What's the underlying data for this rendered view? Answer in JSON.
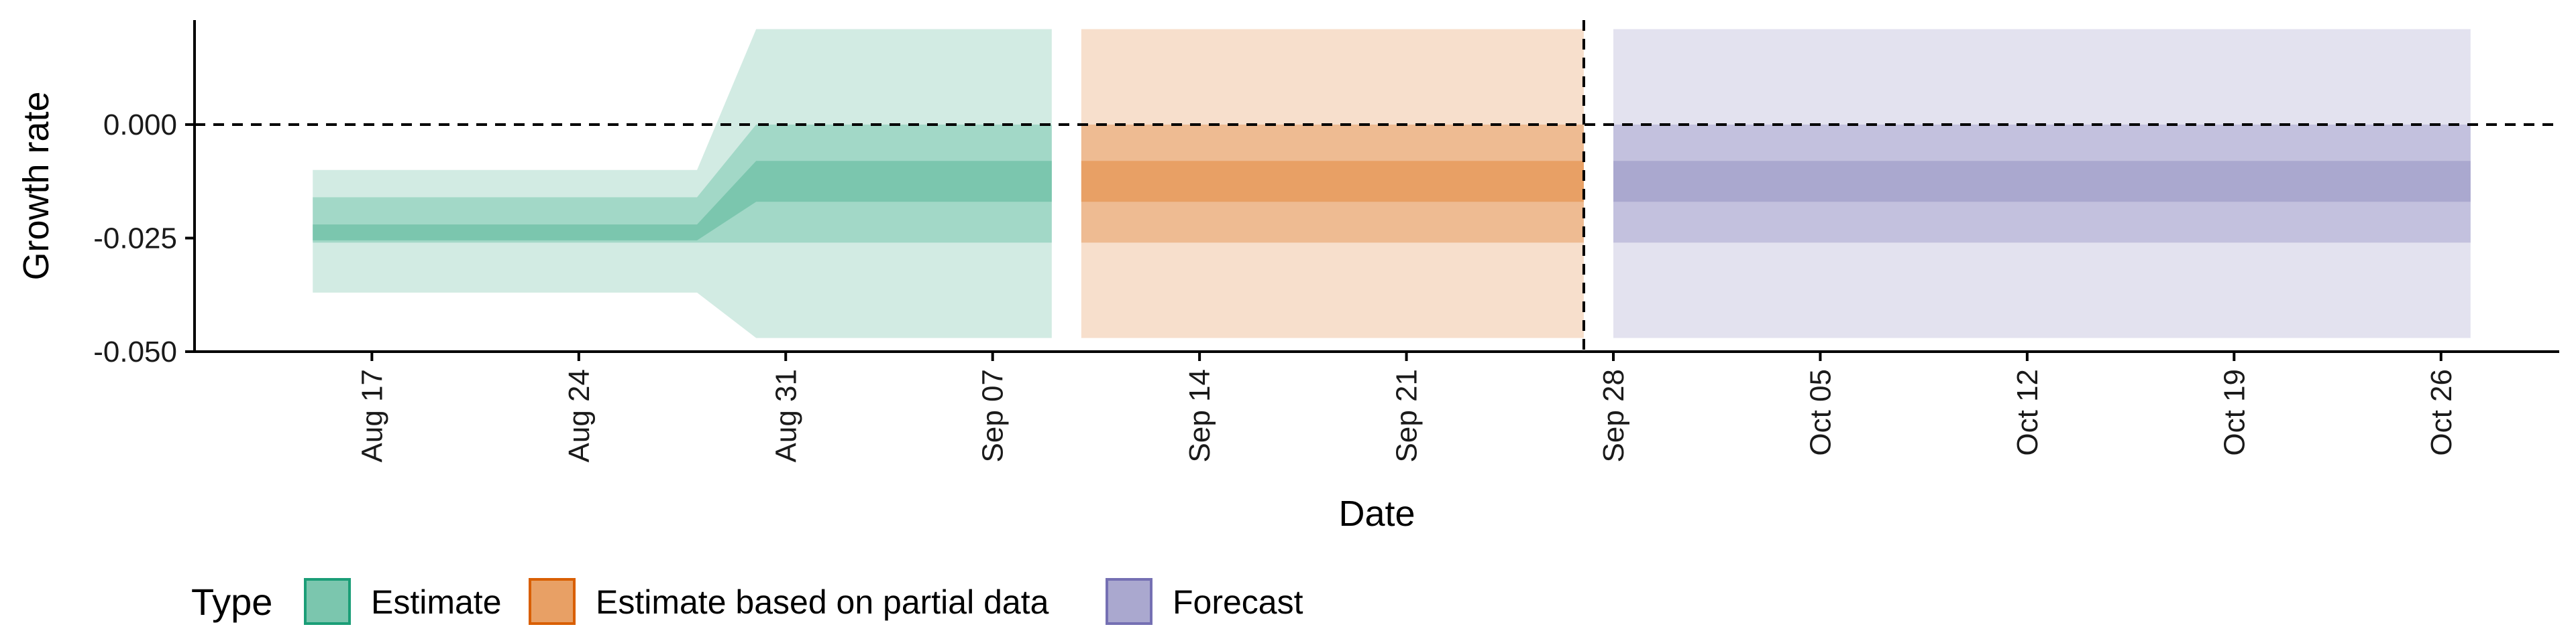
{
  "chart_data": {
    "type": "area",
    "xlabel": "Date",
    "ylabel": "Growth rate",
    "ylim": [
      -0.05,
      0.023
    ],
    "xlim": [
      "2020-08-11",
      "2020-10-30"
    ],
    "yticks": [
      {
        "value": 0.0,
        "label": "0.000"
      },
      {
        "value": -0.025,
        "label": "-0.025"
      },
      {
        "value": -0.05,
        "label": "-0.050"
      }
    ],
    "xticks": [
      {
        "date": "2020-08-17",
        "label": "Aug 17"
      },
      {
        "date": "2020-08-24",
        "label": "Aug 24"
      },
      {
        "date": "2020-08-31",
        "label": "Aug 31"
      },
      {
        "date": "2020-09-07",
        "label": "Sep 07"
      },
      {
        "date": "2020-09-14",
        "label": "Sep 14"
      },
      {
        "date": "2020-09-21",
        "label": "Sep 21"
      },
      {
        "date": "2020-09-28",
        "label": "Sep 28"
      },
      {
        "date": "2020-10-05",
        "label": "Oct 05"
      },
      {
        "date": "2020-10-12",
        "label": "Oct 12"
      },
      {
        "date": "2020-10-19",
        "label": "Oct 19"
      },
      {
        "date": "2020-10-26",
        "label": "Oct 26"
      }
    ],
    "reference_lines": {
      "horizontal_y": 0.0,
      "vertical_date": "2020-09-27"
    },
    "legend": {
      "title": "Type",
      "position": "bottom-left",
      "items": [
        {
          "label": "Estimate",
          "fill": "#7bc6ae",
          "border": "#1b9e77"
        },
        {
          "label": "Estimate based on partial data",
          "fill": "#e8a065",
          "border": "#d95f02"
        },
        {
          "label": "Forecast",
          "fill": "#aaa8cf",
          "border": "#7570b3"
        }
      ]
    },
    "series": [
      {
        "name": "Estimate",
        "colors": {
          "outer": "#d2ebe3",
          "mid": "#a2d8c7",
          "inner": "#7bc6ae"
        },
        "points": [
          {
            "date": "2020-08-15",
            "ci90": [
              -0.037,
              -0.01
            ],
            "ci50": [
              -0.026,
              -0.016
            ],
            "ci20": [
              -0.0255,
              -0.022
            ]
          },
          {
            "date": "2020-08-28",
            "ci90": [
              -0.037,
              -0.01
            ],
            "ci50": [
              -0.026,
              -0.016
            ],
            "ci20": [
              -0.0255,
              -0.022
            ]
          },
          {
            "date": "2020-08-30",
            "ci90": [
              -0.047,
              0.021
            ],
            "ci50": [
              -0.026,
              0.0
            ],
            "ci20": [
              -0.017,
              -0.008
            ]
          },
          {
            "date": "2020-09-09",
            "ci90": [
              -0.047,
              0.021
            ],
            "ci50": [
              -0.026,
              0.0
            ],
            "ci20": [
              -0.017,
              -0.008
            ]
          }
        ]
      },
      {
        "name": "Estimate based on partial data",
        "colors": {
          "outer": "#f7dfcc",
          "mid": "#eebb92",
          "inner": "#e8a065"
        },
        "points": [
          {
            "date": "2020-09-10",
            "ci90": [
              -0.047,
              0.021
            ],
            "ci50": [
              -0.026,
              0.0
            ],
            "ci20": [
              -0.017,
              -0.008
            ]
          },
          {
            "date": "2020-09-27",
            "ci90": [
              -0.047,
              0.021
            ],
            "ci50": [
              -0.026,
              0.0
            ],
            "ci20": [
              -0.017,
              -0.008
            ]
          }
        ]
      },
      {
        "name": "Forecast",
        "colors": {
          "outer": "#e3e2ef",
          "mid": "#c3c1de",
          "inner": "#aaa8cf"
        },
        "points": [
          {
            "date": "2020-09-28",
            "ci90": [
              -0.047,
              0.021
            ],
            "ci50": [
              -0.026,
              0.0
            ],
            "ci20": [
              -0.017,
              -0.008
            ]
          },
          {
            "date": "2020-10-27",
            "ci90": [
              -0.047,
              0.021
            ],
            "ci50": [
              -0.026,
              0.0
            ],
            "ci20": [
              -0.017,
              -0.008
            ]
          }
        ]
      }
    ]
  }
}
